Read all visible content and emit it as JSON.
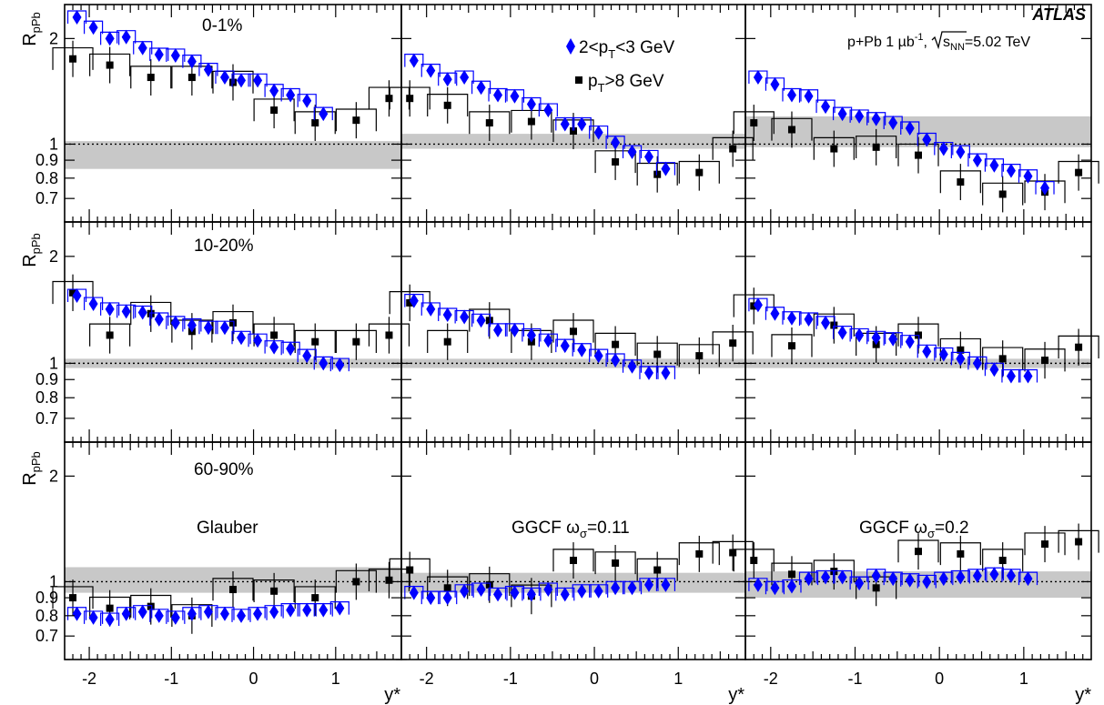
{
  "figure": {
    "experiment": "ATLAS",
    "system_text": "p+Pb  1 µb",
    "system_sup": "-1",
    "sqrt_text": "s",
    "sqrt_sub": "NN",
    "energy_text": "=5.02 TeV",
    "ylabel_main": "R",
    "ylabel_sub": "pPb",
    "xlabel": "y*",
    "colors": {
      "low_pt": "#0000ff",
      "high_pt": "#000000",
      "band": "#c8c8c8"
    }
  },
  "legend": {
    "low_pt": {
      "pre": "2<p",
      "sub": "T",
      "post": "<3 GeV"
    },
    "high_pt": {
      "pre": "p",
      "sub": "T",
      "post": ">8 GeV"
    }
  },
  "row_labels": [
    "0-1%",
    "10-20%",
    "60-90%"
  ],
  "column_labels": [
    {
      "main": "Glauber",
      "sub": ""
    },
    {
      "main": "GGCF ω",
      "sub": "σ",
      "post": "=0.11"
    },
    {
      "main": "GGCF ω",
      "sub": "σ",
      "post": "=0.2"
    }
  ],
  "chart_data": {
    "type": "scatter",
    "title": "",
    "xlabel": "y*",
    "ylabel": "R_pPb",
    "log_y": true,
    "xlim": [
      -2.3,
      1.8
    ],
    "ylim": [
      0.6,
      2.5
    ],
    "x_ticks": [
      "-2",
      "-1",
      "0",
      "1"
    ],
    "y_ticks": [
      "0.7",
      "0.8",
      "0.9",
      "1",
      "2"
    ],
    "series_names": [
      "2<pT<3 GeV",
      "pT>8 GeV"
    ],
    "low_pt_x": [
      -2.15,
      -1.95,
      -1.75,
      -1.55,
      -1.35,
      -1.15,
      -0.95,
      -0.75,
      -0.55,
      -0.35,
      -0.15,
      0.05,
      0.25,
      0.45,
      0.65,
      0.85,
      1.05,
      1.25,
      1.45,
      1.65
    ],
    "high_pt_x": [
      -2.2,
      -1.75,
      -1.25,
      -0.75,
      -0.25,
      0.25,
      0.75,
      1.25,
      1.65
    ],
    "panels": [
      {
        "row": 0,
        "col": 0,
        "band": [
          0.85,
          1.02
        ],
        "low_pt": [
          2.3,
          2.15,
          2.0,
          2.02,
          1.88,
          1.8,
          1.79,
          1.72,
          1.63,
          1.55,
          1.52,
          1.52,
          1.42,
          1.38,
          1.33,
          1.22
        ],
        "high_pt": [
          1.75,
          1.68,
          1.55,
          1.55,
          1.5,
          1.25,
          1.15,
          1.17,
          1.35
        ]
      },
      {
        "row": 0,
        "col": 1,
        "band": [
          0.97,
          1.07
        ],
        "low_pt": [
          1.73,
          1.62,
          1.53,
          1.55,
          1.45,
          1.38,
          1.37,
          1.3,
          1.25,
          1.14,
          1.14,
          1.08,
          1.01,
          0.95,
          0.92,
          0.85
        ],
        "high_pt": [
          1.35,
          1.29,
          1.15,
          1.16,
          1.09,
          0.89,
          0.82,
          0.83,
          0.97
        ]
      },
      {
        "row": 0,
        "col": 2,
        "band": [
          0.98,
          1.2
        ],
        "low_pt": [
          1.55,
          1.48,
          1.38,
          1.37,
          1.28,
          1.22,
          1.2,
          1.18,
          1.15,
          1.11,
          1.03,
          0.97,
          0.95,
          0.9,
          0.87,
          0.84,
          0.81,
          0.75
        ],
        "high_pt": [
          1.15,
          1.1,
          0.97,
          0.98,
          0.93,
          0.78,
          0.72,
          0.73,
          0.83
        ]
      },
      {
        "row": 1,
        "col": 0,
        "band": [
          0.97,
          1.03
        ],
        "low_pt": [
          1.55,
          1.47,
          1.42,
          1.4,
          1.39,
          1.33,
          1.3,
          1.28,
          1.26,
          1.26,
          1.18,
          1.16,
          1.11,
          1.1,
          1.05,
          1.0,
          0.99
        ],
        "high_pt": [
          1.58,
          1.2,
          1.38,
          1.23,
          1.3,
          1.2,
          1.15,
          1.15,
          1.2
        ]
      },
      {
        "row": 1,
        "col": 1,
        "band": [
          0.97,
          1.03
        ],
        "low_pt": [
          1.5,
          1.42,
          1.37,
          1.35,
          1.32,
          1.24,
          1.24,
          1.2,
          1.16,
          1.12,
          1.09,
          1.05,
          1.02,
          0.98,
          0.94,
          0.94
        ],
        "high_pt": [
          1.48,
          1.15,
          1.32,
          1.15,
          1.23,
          1.13,
          1.06,
          1.05,
          1.14
        ]
      },
      {
        "row": 1,
        "col": 2,
        "band": [
          0.97,
          1.03
        ],
        "low_pt": [
          1.46,
          1.38,
          1.34,
          1.33,
          1.3,
          1.22,
          1.2,
          1.18,
          1.17,
          1.15,
          1.08,
          1.06,
          1.03,
          1.0,
          0.96,
          0.92,
          0.92
        ],
        "high_pt": [
          1.45,
          1.12,
          1.28,
          1.13,
          1.2,
          1.09,
          1.03,
          1.02,
          1.11
        ]
      },
      {
        "row": 2,
        "col": 0,
        "band": [
          0.93,
          1.1
        ],
        "low_pt": [
          0.81,
          0.79,
          0.78,
          0.81,
          0.82,
          0.8,
          0.79,
          0.81,
          0.82,
          0.81,
          0.8,
          0.81,
          0.82,
          0.83,
          0.83,
          0.83,
          0.84
        ],
        "high_pt": [
          0.9,
          0.84,
          0.85,
          0.8,
          0.95,
          0.94,
          0.9,
          1.0,
          1.01
        ]
      },
      {
        "row": 2,
        "col": 1,
        "band": [
          0.93,
          1.06
        ],
        "low_pt": [
          0.93,
          0.9,
          0.9,
          0.94,
          0.95,
          0.92,
          0.93,
          0.92,
          0.95,
          0.92,
          0.94,
          0.94,
          0.96,
          0.96,
          0.98,
          0.98
        ],
        "high_pt": [
          1.08,
          0.96,
          0.98,
          0.91,
          1.15,
          1.13,
          1.08,
          1.2,
          1.21
        ]
      },
      {
        "row": 2,
        "col": 2,
        "band": [
          0.9,
          1.07
        ],
        "low_pt": [
          0.98,
          0.96,
          0.97,
          1.02,
          1.03,
          1.03,
          0.99,
          1.04,
          1.02,
          1.01,
          1.0,
          1.02,
          1.03,
          1.04,
          1.05,
          1.04,
          1.02
        ],
        "high_pt": [
          1.15,
          1.05,
          1.07,
          0.96,
          1.22,
          1.2,
          1.15,
          1.28,
          1.3
        ]
      }
    ]
  }
}
